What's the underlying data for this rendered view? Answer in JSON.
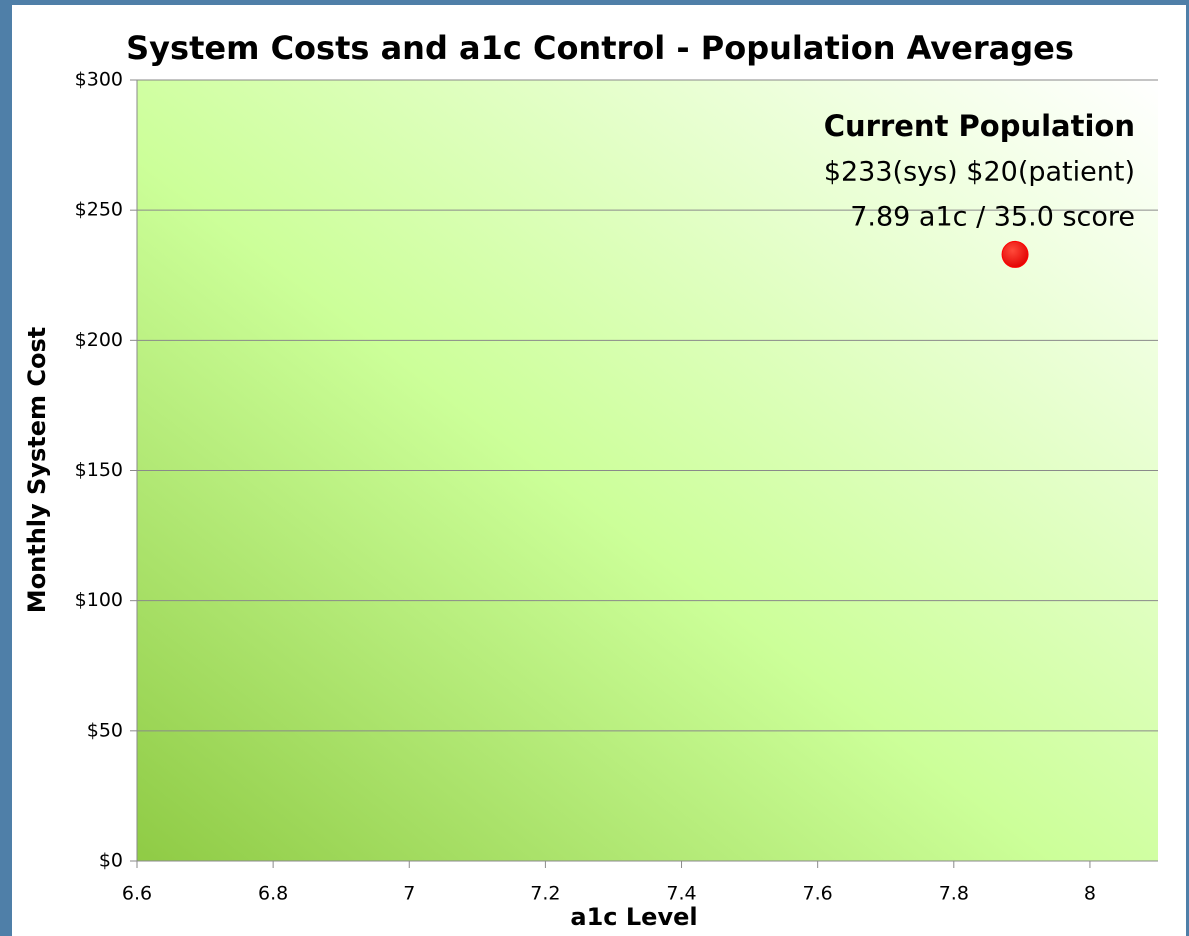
{
  "chart_data": {
    "type": "scatter",
    "title": "System Costs and a1c Control - Population Averages",
    "xlabel": "a1c Level",
    "ylabel": "Monthly System Cost",
    "series": [
      {
        "name": "Current Population",
        "color": "#ff0000",
        "x": [
          7.89
        ],
        "values": [
          233
        ]
      }
    ],
    "annotations": [
      "Current Population",
      "$233(sys) $20(patient)",
      "7.89 a1c / 35.0 score"
    ],
    "xlim": [
      6.6,
      8.1
    ],
    "xticks": [
      6.6,
      6.8,
      7,
      7.2,
      7.4,
      7.6,
      7.8,
      8
    ],
    "ylim": [
      0,
      300
    ],
    "yticks": [
      {
        "value": 0,
        "label": "$0"
      },
      {
        "value": 50,
        "label": "$50"
      },
      {
        "value": 100,
        "label": "$100"
      },
      {
        "value": 150,
        "label": "$150"
      },
      {
        "value": 200,
        "label": "$200"
      },
      {
        "value": 250,
        "label": "$250"
      },
      {
        "value": 300,
        "label": "$300"
      }
    ],
    "grid": true
  }
}
